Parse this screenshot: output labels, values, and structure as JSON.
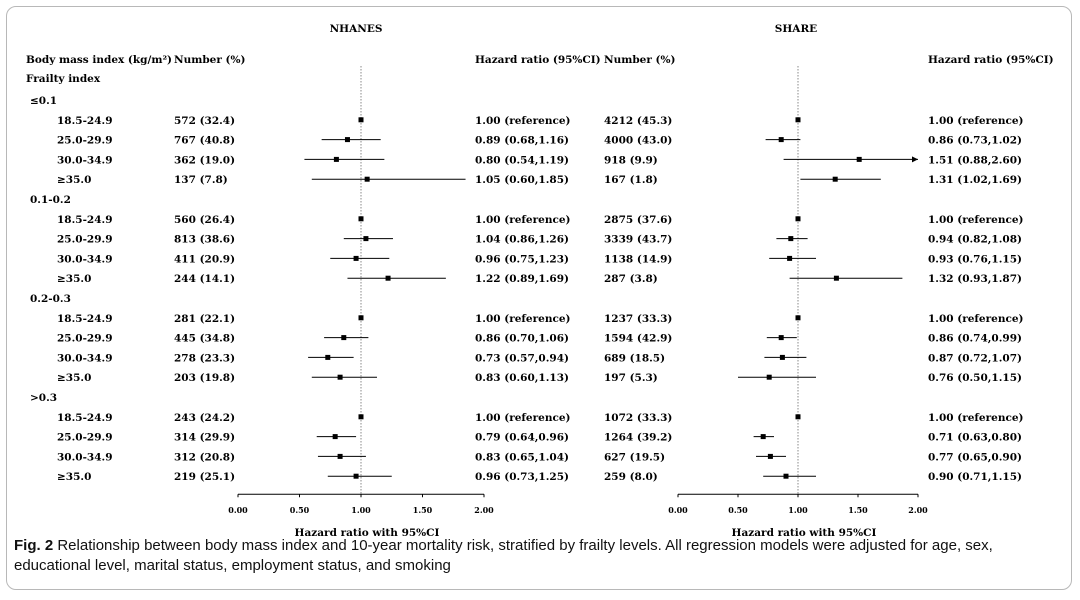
{
  "panel_titles": [
    "NHANES",
    "SHARE"
  ],
  "headers": {
    "bmi": "Body mass index (kg/m²)",
    "number": "Number (%)",
    "hr": "Hazard ratio (95%CI)"
  },
  "frailty_label": "Frailty index",
  "caption": {
    "label": "Fig. 2",
    "text": "Relationship between body mass index and 10-year mortality risk, stratified by frailty levels. All regression models were adjusted for age, sex, educational level, marital status, employment status, and smoking"
  },
  "chart_data": [
    {
      "type": "forest",
      "title": "NHANES",
      "xlabel": "Hazard ratio with 95%CI",
      "xlim": [
        0,
        2
      ],
      "xticks": [
        "0.00",
        "0.50",
        "1.00",
        "1.50",
        "2.00"
      ],
      "reference_line": 1,
      "groups": [
        {
          "label": "≤0.1",
          "rows": [
            {
              "category": "18.5-24.9",
              "n": "572 (32.4)",
              "hr": 1.0,
              "lo": 1.0,
              "hi": 1.0,
              "text": "1.00 (reference)"
            },
            {
              "category": "25.0-29.9",
              "n": "767 (40.8)",
              "hr": 0.89,
              "lo": 0.68,
              "hi": 1.16,
              "text": "0.89 (0.68,1.16)"
            },
            {
              "category": "30.0-34.9",
              "n": "362 (19.0)",
              "hr": 0.8,
              "lo": 0.54,
              "hi": 1.19,
              "text": "0.80 (0.54,1.19)"
            },
            {
              "category": "≥35.0",
              "n": "137 (7.8)",
              "hr": 1.05,
              "lo": 0.6,
              "hi": 1.85,
              "text": "1.05 (0.60,1.85)"
            }
          ]
        },
        {
          "label": "0.1-0.2",
          "rows": [
            {
              "category": "18.5-24.9",
              "n": "560 (26.4)",
              "hr": 1.0,
              "lo": 1.0,
              "hi": 1.0,
              "text": "1.00 (reference)"
            },
            {
              "category": "25.0-29.9",
              "n": "813 (38.6)",
              "hr": 1.04,
              "lo": 0.86,
              "hi": 1.26,
              "text": "1.04 (0.86,1.26)"
            },
            {
              "category": "30.0-34.9",
              "n": "411 (20.9)",
              "hr": 0.96,
              "lo": 0.75,
              "hi": 1.23,
              "text": "0.96 (0.75,1.23)"
            },
            {
              "category": "≥35.0",
              "n": "244 (14.1)",
              "hr": 1.22,
              "lo": 0.89,
              "hi": 1.69,
              "text": "1.22 (0.89,1.69)"
            }
          ]
        },
        {
          "label": "0.2-0.3",
          "rows": [
            {
              "category": "18.5-24.9",
              "n": "281 (22.1)",
              "hr": 1.0,
              "lo": 1.0,
              "hi": 1.0,
              "text": "1.00 (reference)"
            },
            {
              "category": "25.0-29.9",
              "n": "445 (34.8)",
              "hr": 0.86,
              "lo": 0.7,
              "hi": 1.06,
              "text": "0.86 (0.70,1.06)"
            },
            {
              "category": "30.0-34.9",
              "n": "278 (23.3)",
              "hr": 0.73,
              "lo": 0.57,
              "hi": 0.94,
              "text": "0.73 (0.57,0.94)"
            },
            {
              "category": "≥35.0",
              "n": "203 (19.8)",
              "hr": 0.83,
              "lo": 0.6,
              "hi": 1.13,
              "text": "0.83 (0.60,1.13)"
            }
          ]
        },
        {
          "label": ">0.3",
          "rows": [
            {
              "category": "18.5-24.9",
              "n": "243 (24.2)",
              "hr": 1.0,
              "lo": 1.0,
              "hi": 1.0,
              "text": "1.00 (reference)"
            },
            {
              "category": "25.0-29.9",
              "n": "314 (29.9)",
              "hr": 0.79,
              "lo": 0.64,
              "hi": 0.96,
              "text": "0.79 (0.64,0.96)"
            },
            {
              "category": "30.0-34.9",
              "n": "312 (20.8)",
              "hr": 0.83,
              "lo": 0.65,
              "hi": 1.04,
              "text": "0.83 (0.65,1.04)"
            },
            {
              "category": "≥35.0",
              "n": "219 (25.1)",
              "hr": 0.96,
              "lo": 0.73,
              "hi": 1.25,
              "text": "0.96 (0.73,1.25)"
            }
          ]
        }
      ]
    },
    {
      "type": "forest",
      "title": "SHARE",
      "xlabel": "Hazard ratio with 95%CI",
      "xlim": [
        0,
        2
      ],
      "xticks": [
        "0.00",
        "0.50",
        "1.00",
        "1.50",
        "2.00"
      ],
      "reference_line": 1,
      "groups": [
        {
          "label": "≤0.1",
          "rows": [
            {
              "category": "18.5-24.9",
              "n": "4212 (45.3)",
              "hr": 1.0,
              "lo": 1.0,
              "hi": 1.0,
              "text": "1.00 (reference)"
            },
            {
              "category": "25.0-29.9",
              "n": "4000 (43.0)",
              "hr": 0.86,
              "lo": 0.73,
              "hi": 1.02,
              "text": "0.86 (0.73,1.02)"
            },
            {
              "category": "30.0-34.9",
              "n": "918 (9.9)",
              "hr": 1.51,
              "lo": 0.88,
              "hi": 2.6,
              "text": "1.51 (0.88,2.60)"
            },
            {
              "category": "≥35.0",
              "n": "167 (1.8)",
              "hr": 1.31,
              "lo": 1.02,
              "hi": 1.69,
              "text": "1.31 (1.02,1.69)"
            }
          ]
        },
        {
          "label": "0.1-0.2",
          "rows": [
            {
              "category": "18.5-24.9",
              "n": "2875 (37.6)",
              "hr": 1.0,
              "lo": 1.0,
              "hi": 1.0,
              "text": "1.00 (reference)"
            },
            {
              "category": "25.0-29.9",
              "n": "3339 (43.7)",
              "hr": 0.94,
              "lo": 0.82,
              "hi": 1.08,
              "text": "0.94 (0.82,1.08)"
            },
            {
              "category": "30.0-34.9",
              "n": "1138 (14.9)",
              "hr": 0.93,
              "lo": 0.76,
              "hi": 1.15,
              "text": "0.93 (0.76,1.15)"
            },
            {
              "category": "≥35.0",
              "n": "287 (3.8)",
              "hr": 1.32,
              "lo": 0.93,
              "hi": 1.87,
              "text": "1.32 (0.93,1.87)"
            }
          ]
        },
        {
          "label": "0.2-0.3",
          "rows": [
            {
              "category": "18.5-24.9",
              "n": "1237 (33.3)",
              "hr": 1.0,
              "lo": 1.0,
              "hi": 1.0,
              "text": "1.00 (reference)"
            },
            {
              "category": "25.0-29.9",
              "n": "1594 (42.9)",
              "hr": 0.86,
              "lo": 0.74,
              "hi": 0.99,
              "text": "0.86 (0.74,0.99)"
            },
            {
              "category": "30.0-34.9",
              "n": "689 (18.5)",
              "hr": 0.87,
              "lo": 0.72,
              "hi": 1.07,
              "text": "0.87 (0.72,1.07)"
            },
            {
              "category": "≥35.0",
              "n": "197 (5.3)",
              "hr": 0.76,
              "lo": 0.5,
              "hi": 1.15,
              "text": "0.76 (0.50,1.15)"
            }
          ]
        },
        {
          "label": ">0.3",
          "rows": [
            {
              "category": "18.5-24.9",
              "n": "1072 (33.3)",
              "hr": 1.0,
              "lo": 1.0,
              "hi": 1.0,
              "text": "1.00 (reference)"
            },
            {
              "category": "25.0-29.9",
              "n": "1264 (39.2)",
              "hr": 0.71,
              "lo": 0.63,
              "hi": 0.8,
              "text": "0.71 (0.63,0.80)"
            },
            {
              "category": "30.0-34.9",
              "n": "627 (19.5)",
              "hr": 0.77,
              "lo": 0.65,
              "hi": 0.9,
              "text": "0.77 (0.65,0.90)"
            },
            {
              "category": "≥35.0",
              "n": "259 (8.0)",
              "hr": 0.9,
              "lo": 0.71,
              "hi": 1.15,
              "text": "0.90 (0.71,1.15)"
            }
          ]
        }
      ]
    }
  ]
}
